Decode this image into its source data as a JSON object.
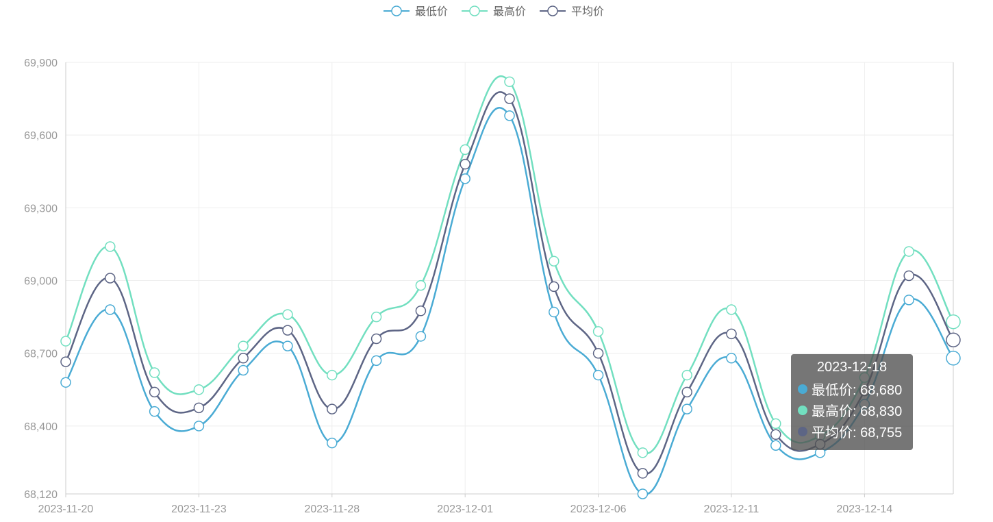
{
  "chart_data": {
    "type": "line",
    "x": [
      "2023-11-20",
      "2023-11-21",
      "2023-11-22",
      "2023-11-23",
      "2023-11-24",
      "2023-11-27",
      "2023-11-28",
      "2023-11-29",
      "2023-11-30",
      "2023-12-01",
      "2023-12-04",
      "2023-12-05",
      "2023-12-06",
      "2023-12-07",
      "2023-12-08",
      "2023-12-11",
      "2023-12-12",
      "2023-12-13",
      "2023-12-14",
      "2023-12-15",
      "2023-12-18"
    ],
    "x_tick_labels": [
      "2023-11-20",
      "2023-11-23",
      "2023-11-28",
      "2023-12-01",
      "2023-12-06",
      "2023-12-11",
      "2023-12-14"
    ],
    "y_ticks": [
      "68,120",
      "68,400",
      "68,700",
      "69,000",
      "69,300",
      "69,600",
      "69,900"
    ],
    "ylim": [
      68120,
      69900
    ],
    "series": [
      {
        "name": "最低价",
        "color": "#4AABD4",
        "values": [
          68580,
          68880,
          68460,
          68400,
          68630,
          68730,
          68330,
          68670,
          68770,
          69420,
          69680,
          68870,
          68610,
          68120,
          68470,
          68680,
          68320,
          68290,
          68490,
          68920,
          68680
        ]
      },
      {
        "name": "最高价",
        "color": "#72DFC0",
        "values": [
          68750,
          69140,
          68620,
          68550,
          68730,
          68860,
          68610,
          68850,
          68980,
          69540,
          69820,
          69080,
          68790,
          68290,
          68610,
          68880,
          68410,
          68360,
          68600,
          69120,
          68830
        ]
      },
      {
        "name": "平均价",
        "color": "#5D6585",
        "values": [
          68665,
          69010,
          68540,
          68475,
          68680,
          68795,
          68470,
          68760,
          68875,
          69480,
          69750,
          68975,
          68700,
          68205,
          68540,
          68780,
          68365,
          68325,
          68545,
          69020,
          68755
        ]
      }
    ],
    "legend_position": "top",
    "grid": true,
    "tooltip": {
      "title": "2023-12-18",
      "rows": [
        {
          "label": "最低价: 68,680",
          "color": "#4AABD4"
        },
        {
          "label": "最高价: 68,830",
          "color": "#72DFC0"
        },
        {
          "label": "平均价: 68,755",
          "color": "#5D6585"
        }
      ]
    }
  }
}
